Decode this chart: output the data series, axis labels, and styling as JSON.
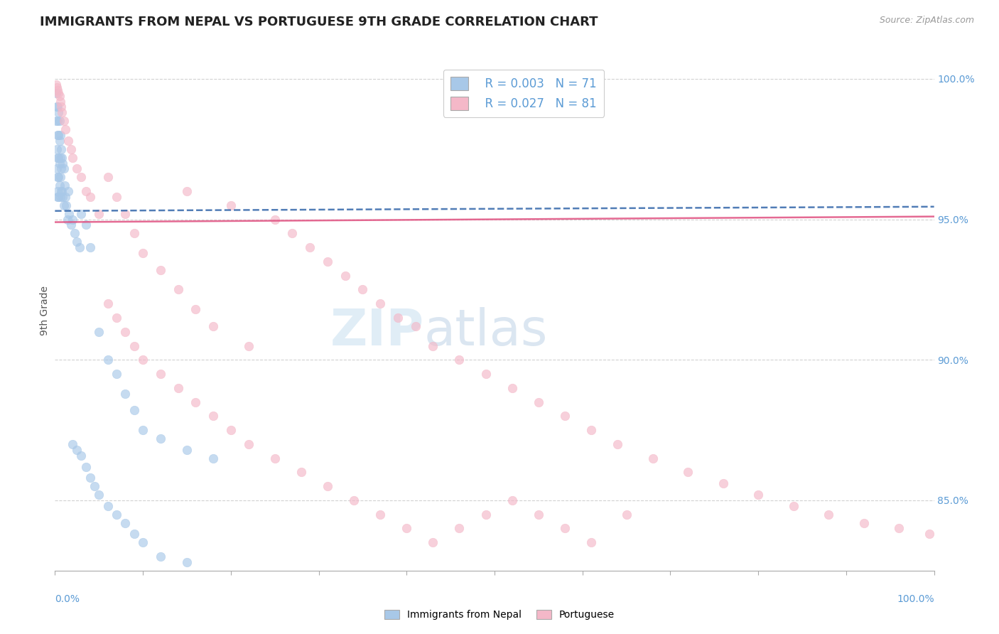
{
  "title": "IMMIGRANTS FROM NEPAL VS PORTUGUESE 9TH GRADE CORRELATION CHART",
  "source_text": "Source: ZipAtlas.com",
  "ylabel": "9th Grade",
  "watermark_zip": "ZIP",
  "watermark_atlas": "atlas",
  "nepal_R": "R = 0.003",
  "nepal_N": "N = 71",
  "portuguese_R": "R = 0.027",
  "portuguese_N": "N = 81",
  "nepal_color": "#a8c8e8",
  "portuguese_color": "#f4b8c8",
  "nepal_line_color": "#3366aa",
  "portuguese_line_color": "#e05080",
  "nepal_line_start_y": 0.953,
  "nepal_line_end_y": 0.9545,
  "portuguese_line_start_y": 0.949,
  "portuguese_line_end_y": 0.951,
  "nepal_x": [
    0.001,
    0.001,
    0.002,
    0.002,
    0.002,
    0.003,
    0.003,
    0.003,
    0.003,
    0.003,
    0.003,
    0.004,
    0.004,
    0.004,
    0.004,
    0.004,
    0.005,
    0.005,
    0.005,
    0.005,
    0.006,
    0.006,
    0.006,
    0.006,
    0.007,
    0.007,
    0.007,
    0.008,
    0.008,
    0.009,
    0.009,
    0.01,
    0.01,
    0.011,
    0.012,
    0.013,
    0.014,
    0.015,
    0.016,
    0.018,
    0.02,
    0.022,
    0.025,
    0.028,
    0.03,
    0.035,
    0.04,
    0.05,
    0.06,
    0.07,
    0.08,
    0.09,
    0.1,
    0.12,
    0.15,
    0.18,
    0.02,
    0.025,
    0.03,
    0.035,
    0.04,
    0.045,
    0.05,
    0.06,
    0.07,
    0.08,
    0.09,
    0.1,
    0.12,
    0.15,
    0.003
  ],
  "nepal_y": [
    0.995,
    0.985,
    0.99,
    0.975,
    0.968,
    0.99,
    0.985,
    0.98,
    0.972,
    0.965,
    0.958,
    0.988,
    0.98,
    0.972,
    0.965,
    0.958,
    0.985,
    0.978,
    0.97,
    0.962,
    0.98,
    0.972,
    0.965,
    0.958,
    0.975,
    0.968,
    0.96,
    0.972,
    0.96,
    0.97,
    0.958,
    0.968,
    0.955,
    0.962,
    0.958,
    0.955,
    0.95,
    0.96,
    0.952,
    0.948,
    0.95,
    0.945,
    0.942,
    0.94,
    0.952,
    0.948,
    0.94,
    0.91,
    0.9,
    0.895,
    0.888,
    0.882,
    0.875,
    0.872,
    0.868,
    0.865,
    0.87,
    0.868,
    0.866,
    0.862,
    0.858,
    0.855,
    0.852,
    0.848,
    0.845,
    0.842,
    0.838,
    0.835,
    0.83,
    0.828,
    0.96
  ],
  "portuguese_x": [
    0.001,
    0.002,
    0.003,
    0.004,
    0.005,
    0.006,
    0.007,
    0.008,
    0.01,
    0.012,
    0.015,
    0.018,
    0.02,
    0.025,
    0.03,
    0.035,
    0.04,
    0.05,
    0.06,
    0.07,
    0.08,
    0.09,
    0.1,
    0.12,
    0.14,
    0.15,
    0.16,
    0.18,
    0.2,
    0.22,
    0.25,
    0.27,
    0.29,
    0.31,
    0.33,
    0.35,
    0.37,
    0.39,
    0.41,
    0.43,
    0.46,
    0.49,
    0.52,
    0.55,
    0.58,
    0.61,
    0.64,
    0.68,
    0.72,
    0.76,
    0.8,
    0.84,
    0.88,
    0.92,
    0.96,
    0.995,
    0.06,
    0.07,
    0.08,
    0.09,
    0.1,
    0.12,
    0.14,
    0.16,
    0.18,
    0.2,
    0.22,
    0.25,
    0.28,
    0.31,
    0.34,
    0.37,
    0.4,
    0.43,
    0.46,
    0.49,
    0.52,
    0.55,
    0.58,
    0.61,
    0.65
  ],
  "portuguese_y": [
    0.998,
    0.997,
    0.996,
    0.995,
    0.994,
    0.992,
    0.99,
    0.988,
    0.985,
    0.982,
    0.978,
    0.975,
    0.972,
    0.968,
    0.965,
    0.96,
    0.958,
    0.952,
    0.965,
    0.958,
    0.952,
    0.945,
    0.938,
    0.932,
    0.925,
    0.96,
    0.918,
    0.912,
    0.955,
    0.905,
    0.95,
    0.945,
    0.94,
    0.935,
    0.93,
    0.925,
    0.92,
    0.915,
    0.912,
    0.905,
    0.9,
    0.895,
    0.89,
    0.885,
    0.88,
    0.875,
    0.87,
    0.865,
    0.86,
    0.856,
    0.852,
    0.848,
    0.845,
    0.842,
    0.84,
    0.838,
    0.92,
    0.915,
    0.91,
    0.905,
    0.9,
    0.895,
    0.89,
    0.885,
    0.88,
    0.875,
    0.87,
    0.865,
    0.86,
    0.855,
    0.85,
    0.845,
    0.84,
    0.835,
    0.84,
    0.845,
    0.85,
    0.845,
    0.84,
    0.835,
    0.845
  ],
  "title_color": "#222222",
  "axis_label_color": "#5b9bd5",
  "background_color": "#ffffff",
  "grid_color": "#cccccc",
  "xlim": [
    0,
    1.0
  ],
  "ylim": [
    0.825,
    1.01
  ]
}
